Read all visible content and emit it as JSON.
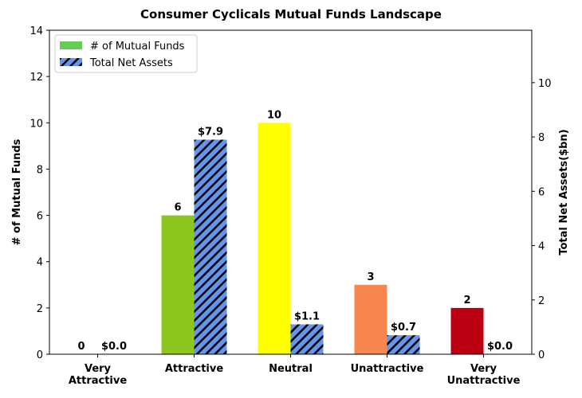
{
  "chart_data": {
    "type": "bar",
    "title": "Consumer Cyclicals Mutual Funds Landscape",
    "categories": [
      "Very\nAttractive",
      "Attractive",
      "Neutral",
      "Unattractive",
      "Very\nUnattractive"
    ],
    "series": [
      {
        "name": "# of Mutual Funds",
        "color": "#66cc55",
        "colors": [
          "#1a9e3a",
          "#8dc71e",
          "#ffff00",
          "#f7874f",
          "#bb0012"
        ],
        "values": [
          0,
          6,
          10,
          3,
          2
        ]
      },
      {
        "name": "Total Net Assets",
        "color": "#6495ed",
        "hatch": true,
        "axis": "y2",
        "values": [
          0,
          7.9,
          1.1,
          0.7,
          0
        ],
        "value_labels": [
          "$0.0",
          "$7.9",
          "$1.1",
          "$0.7",
          "$0.0"
        ]
      }
    ],
    "ylabel": "# of Mutual Funds",
    "y2label": "Total Net Assets($bn)",
    "ylim": [
      0,
      14
    ],
    "yticks": [
      0,
      2,
      4,
      6,
      8,
      10,
      12,
      14
    ],
    "y2lim": [
      0,
      11.93
    ],
    "y2ticks": [
      0,
      2,
      4,
      6,
      8,
      10
    ],
    "legend": "upper left"
  }
}
